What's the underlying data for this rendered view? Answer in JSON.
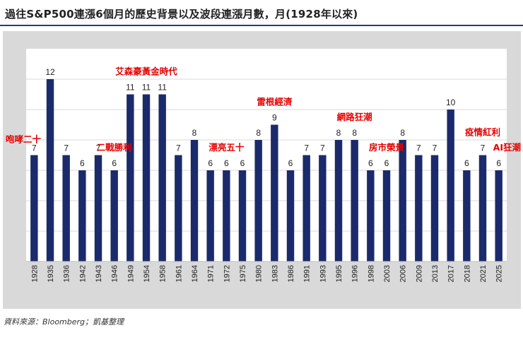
{
  "title": "過往S&P500連漲6個月的歷史背景以及波段連漲月數，月(1928年以來)",
  "source": "資料來源：Bloomberg；凱基整理",
  "colors": {
    "bar": "#1b2a6b",
    "annotation": "#e60000",
    "panel": "#d9d9d9",
    "plot": "#ffffff",
    "grid": "#d9d9d9"
  },
  "chart_data": {
    "type": "bar",
    "title": "過往S&P500連漲6個月的歷史背景以及波段連漲月數，月(1928年以來)",
    "xlabel": "",
    "ylabel": "",
    "ylim": [
      0,
      14
    ],
    "grid": true,
    "categories": [
      "1928",
      "1935",
      "1936",
      "1942",
      "1943",
      "1946",
      "1949",
      "1954",
      "1958",
      "1961",
      "1964",
      "1971",
      "1972",
      "1975",
      "1980",
      "1983",
      "1986",
      "1991",
      "1993",
      "1995",
      "1996",
      "1998",
      "2003",
      "2006",
      "2009",
      "2013",
      "2017",
      "2018",
      "2021",
      "2025"
    ],
    "values": [
      7,
      12,
      7,
      6,
      7,
      6,
      11,
      11,
      11,
      7,
      8,
      6,
      6,
      6,
      8,
      9,
      6,
      7,
      7,
      8,
      8,
      6,
      6,
      8,
      7,
      7,
      10,
      6,
      7,
      6
    ],
    "annotations": [
      {
        "text": "咆哮二十",
        "category": "1928"
      },
      {
        "text": "二戰勝利",
        "category": "1946"
      },
      {
        "text": "艾森豪黃金時代",
        "category": "1954"
      },
      {
        "text": "漂亮五十",
        "category": "1972"
      },
      {
        "text": "雷根經濟",
        "category": "1983"
      },
      {
        "text": "網路狂潮",
        "category": "1996"
      },
      {
        "text": "房市榮景",
        "category": "2003"
      },
      {
        "text": "疫情紅利",
        "category": "2021"
      },
      {
        "text": "AI狂潮",
        "category": "2025"
      }
    ]
  }
}
